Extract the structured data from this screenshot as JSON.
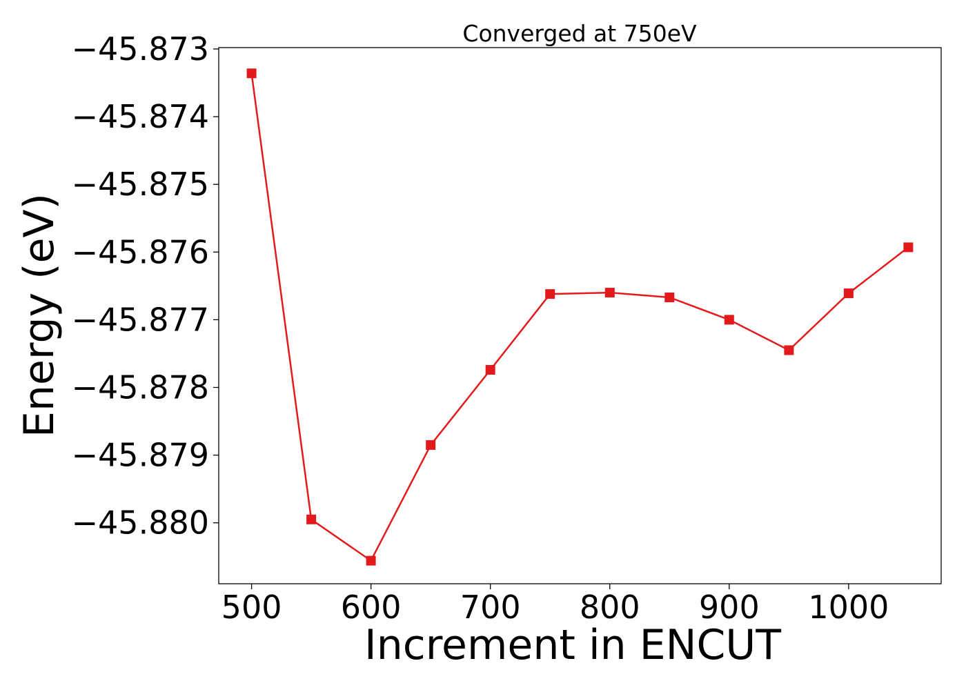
{
  "chart_data": {
    "type": "line",
    "title": "Converged at 750eV",
    "xlabel": "Increment in ENCUT",
    "ylabel": "Energy (eV)",
    "x": [
      500,
      550,
      600,
      650,
      700,
      750,
      800,
      850,
      900,
      950,
      1000,
      1050
    ],
    "series": [
      {
        "values": [
          -45.87336,
          -45.87995,
          -45.88056,
          -45.87885,
          -45.87774,
          -45.87662,
          -45.8766,
          -45.87667,
          -45.877,
          -45.87745,
          -45.87661,
          -45.87593
        ],
        "color": "#e31a1c",
        "marker": "square"
      }
    ],
    "xlim": [
      472.5,
      1077.5
    ],
    "ylim": [
      -45.8809,
      -45.87298
    ],
    "xticks": [
      500,
      600,
      700,
      800,
      900,
      1000
    ],
    "yticks": [
      -45.873,
      -45.874,
      -45.875,
      -45.876,
      -45.877,
      -45.878,
      -45.879,
      -45.88
    ],
    "ytick_labels": [
      "−45.873",
      "−45.874",
      "−45.875",
      "−45.876",
      "−45.877",
      "−45.878",
      "−45.879",
      "−45.880"
    ],
    "grid": false,
    "legend": "none"
  }
}
